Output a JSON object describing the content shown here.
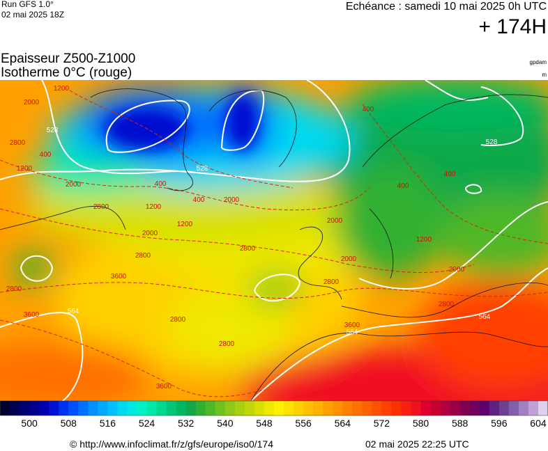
{
  "header": {
    "run": "Run GFS 1.0°",
    "run_date": "02 mai 2025 18Z",
    "valid": "Echéance : samedi 10 mai 2025 0h UTC",
    "lead": "+ 174H",
    "title": "Epaisseur Z500-Z1000",
    "subtitle": "Isotherme 0°C (rouge)",
    "unit_thickness": "gpdam",
    "unit_iso": "m"
  },
  "map": {
    "labels": [
      "528",
      "528",
      "528",
      "564",
      "564",
      "564",
      "2800",
      "2000",
      "1200",
      "400",
      "1200",
      "2000",
      "2800",
      "400",
      "1200",
      "2000",
      "1200",
      "400",
      "2000",
      "2800",
      "2800",
      "3600",
      "2800",
      "3600",
      "2800",
      "2800",
      "3600",
      "2800",
      "2000",
      "2000",
      "400",
      "400",
      "400",
      "1200",
      "2000",
      "2800",
      "3600"
    ]
  },
  "colorbar": {
    "range": [
      494,
      606
    ],
    "ticks": [
      500,
      508,
      516,
      524,
      532,
      540,
      548,
      556,
      564,
      572,
      580,
      588,
      596,
      604
    ],
    "colors": [
      "#000030",
      "#000050",
      "#000070",
      "#00008c",
      "#0000b0",
      "#0010d0",
      "#0030f0",
      "#0050ff",
      "#0070ff",
      "#0090ff",
      "#00a8ff",
      "#00c0ff",
      "#00d8f0",
      "#00e8e0",
      "#00f0c8",
      "#00e8a8",
      "#00d890",
      "#00c878",
      "#00b860",
      "#10a848",
      "#30b030",
      "#50b828",
      "#70c020",
      "#90c818",
      "#a8d010",
      "#c0d808",
      "#d8e000",
      "#f0e800",
      "#fff000",
      "#ffe000",
      "#ffd000",
      "#ffc000",
      "#ffb000",
      "#ffa000",
      "#ff9000",
      "#ff8000",
      "#ff7000",
      "#ff6000",
      "#ff5000",
      "#ff4000",
      "#ff3000",
      "#f82010",
      "#f01020",
      "#e00030",
      "#c80030",
      "#b00040",
      "#980048",
      "#800050",
      "#700060",
      "#600070",
      "#602080",
      "#704090",
      "#8060a8",
      "#a080c0",
      "#c0a0d8",
      "#e0d0f0"
    ]
  },
  "footer": {
    "source": "© http://www.infoclimat.fr/z/gfs/europe/iso0/174",
    "generated": "02 mai 2025 22:25 UTC"
  }
}
